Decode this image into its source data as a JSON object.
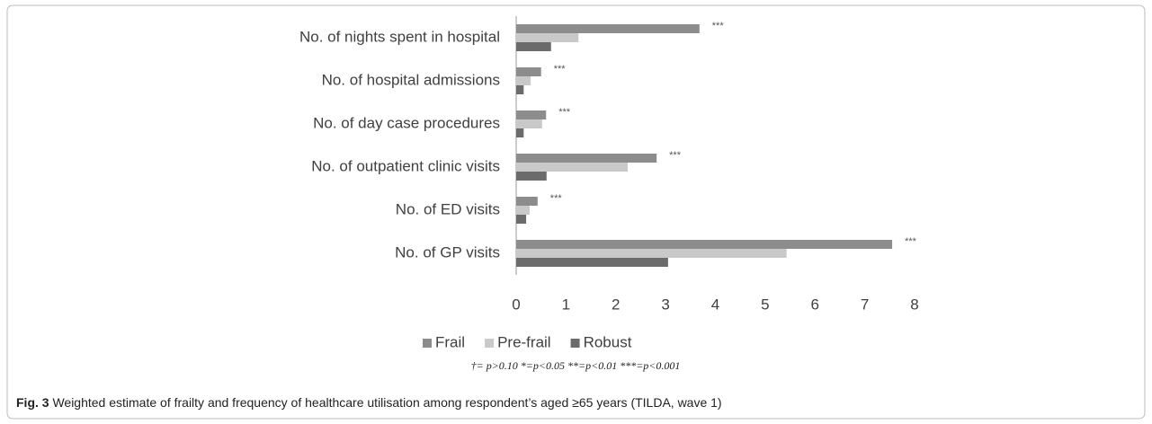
{
  "chart_data": {
    "type": "bar",
    "orientation": "horizontal",
    "categories": [
      "No. of nights spent in hospital",
      "No. of hospital admissions",
      "No. of day case procedures",
      "No. of outpatient clinic visits",
      "No. of ED visits",
      "No. of GP visits"
    ],
    "series": [
      {
        "name": "Frail",
        "color": "#8c8c8c",
        "values": [
          3.68,
          0.5,
          0.6,
          2.82,
          0.43,
          7.55
        ]
      },
      {
        "name": "Pre-frail",
        "color": "#c9c9c9",
        "values": [
          1.25,
          0.29,
          0.52,
          2.24,
          0.27,
          5.43
        ]
      },
      {
        "name": "Robust",
        "color": "#6b6b6b",
        "values": [
          0.7,
          0.15,
          0.15,
          0.61,
          0.2,
          3.05
        ]
      }
    ],
    "annotations": [
      "***",
      "***",
      "***",
      "***",
      "***",
      "***"
    ],
    "xlim": [
      0,
      8
    ],
    "xticks": [
      0,
      1,
      2,
      3,
      4,
      5,
      6,
      7,
      8
    ],
    "legend": "bottom",
    "note": "†= p>0.10   *=p<0.05   **=p<0.01   ***=p<0.001",
    "caption_label": "Fig. 3",
    "caption_text": "Weighted estimate of frailty and frequency of healthcare utilisation among respondent’s aged ≥65 years (TILDA, wave 1)"
  }
}
